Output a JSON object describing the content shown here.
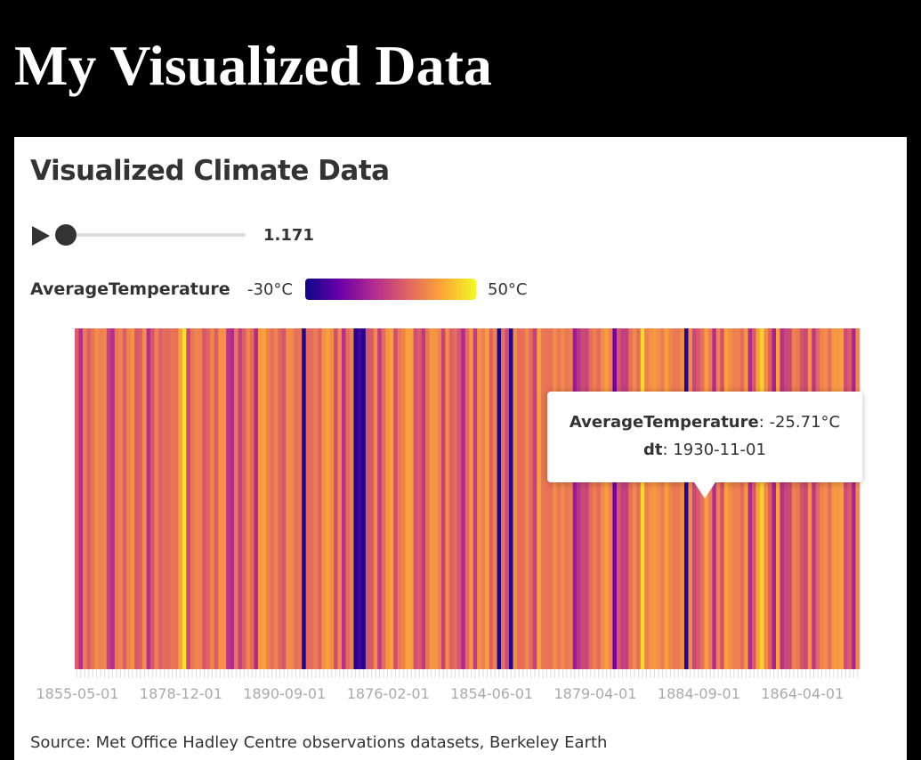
{
  "page": {
    "title": "My Visualized Data"
  },
  "card": {
    "title": "Visualized Climate Data"
  },
  "player": {
    "value_label": "1.171",
    "progress": 0.0
  },
  "legend": {
    "field": "AverageTemperature",
    "min_label": "-30°C",
    "max_label": "50°C",
    "colors": [
      "#0d0887",
      "#6a00a8",
      "#b12a90",
      "#e16462",
      "#fca636",
      "#f0f921"
    ]
  },
  "tooltip": {
    "field_label": "AverageTemperature",
    "field_value": "-25.71°C",
    "date_label": "dt",
    "date_value": "1930-11-01"
  },
  "source": {
    "text": "Source: Met Office Hadley Centre observations datasets, Berkeley Earth"
  },
  "chart_data": {
    "type": "heatmap",
    "value_field": "AverageTemperature",
    "unit": "°C",
    "color_range": [
      -30,
      50
    ],
    "colormap": "plasma",
    "x_tick_labels": [
      "1855-05-01",
      "1878-12-01",
      "1890-09-01",
      "1876-02-01",
      "1854-06-01",
      "1879-04-01",
      "1884-09-01",
      "1864-04-01"
    ],
    "values": [
      16,
      3,
      24,
      16,
      22,
      28,
      25,
      27,
      9,
      3,
      23,
      26,
      16,
      26,
      29,
      14,
      17,
      28,
      3,
      14,
      25,
      17,
      20,
      19,
      22,
      21,
      33,
      46,
      10,
      22,
      26,
      25,
      14,
      18,
      26,
      16,
      29,
      29,
      5,
      2,
      22,
      8,
      16,
      26,
      20,
      2,
      30,
      33,
      25,
      21,
      26,
      18,
      14,
      28,
      27,
      21,
      22,
      -27,
      19,
      20,
      24,
      17,
      29,
      32,
      28,
      12,
      27,
      4,
      20,
      26,
      -27,
      -20,
      -27,
      14,
      15,
      27,
      7,
      20,
      30,
      33,
      12,
      23,
      26,
      33,
      32,
      12,
      16,
      6,
      22,
      30,
      30,
      26,
      9,
      28,
      17,
      20,
      14,
      2,
      20,
      30,
      7,
      29,
      25,
      32,
      17,
      25,
      -28,
      21,
      11,
      -26,
      28,
      20,
      21,
      27,
      19,
      8,
      33,
      23,
      22,
      21,
      28,
      23,
      27,
      23,
      25,
      -3,
      5,
      11,
      9,
      20,
      24,
      20,
      28,
      32,
      25,
      -13,
      14,
      8,
      8,
      21,
      27,
      20,
      44,
      25,
      29,
      31,
      28,
      24,
      32,
      26,
      23,
      23,
      28,
      -26,
      28,
      10,
      15,
      21,
      32,
      24,
      3,
      26,
      13,
      33,
      28,
      25,
      25,
      20,
      30,
      2,
      15,
      33,
      42,
      27,
      17,
      -1,
      33,
      4,
      10,
      11,
      25,
      23,
      13,
      10,
      29,
      6,
      19,
      26,
      28,
      21,
      31,
      30,
      32,
      11,
      16,
      0,
      27
    ]
  }
}
